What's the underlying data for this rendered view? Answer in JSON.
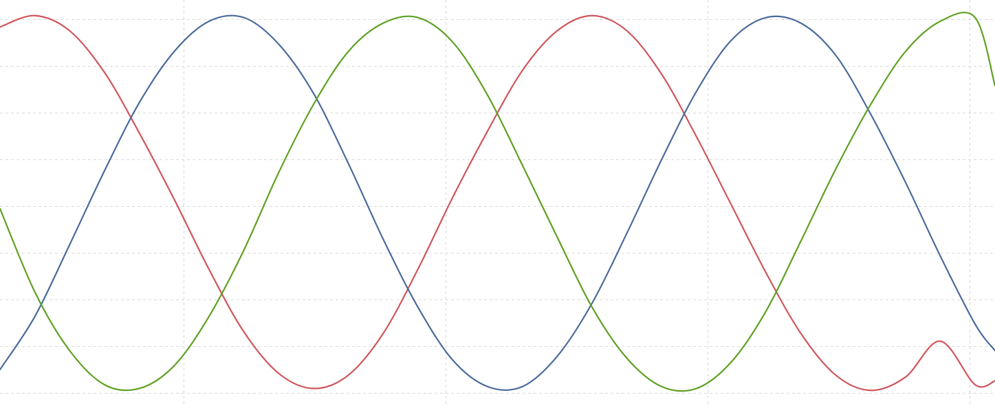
{
  "chart_data": {
    "type": "line",
    "title": "",
    "xlabel": "",
    "ylabel": "",
    "x_range": [
      0,
      1
    ],
    "y_range": [
      -1,
      1
    ],
    "grid": true,
    "legend": "none",
    "colors": {
      "background": "#ffffff",
      "grid": "#d9d9d9"
    },
    "series": [
      {
        "color": "#d0555b",
        "x": [
          0,
          0.035,
          0.07,
          0.105,
          0.14,
          0.175,
          0.21,
          0.245,
          0.28,
          0.315,
          0.35,
          0.385,
          0.42,
          0.455,
          0.49,
          0.525,
          0.56,
          0.595,
          0.63,
          0.665,
          0.7,
          0.735,
          0.77,
          0.805,
          0.84,
          0.875,
          0.91,
          0.945,
          0.98,
          1.0
        ],
        "y": [
          0.93,
          0.99,
          0.91,
          0.69,
          0.37,
          0.02,
          -0.35,
          -0.68,
          -0.9,
          -0.98,
          -0.91,
          -0.69,
          -0.35,
          0.03,
          0.38,
          0.7,
          0.91,
          0.99,
          0.91,
          0.68,
          0.35,
          -0.01,
          -0.37,
          -0.69,
          -0.91,
          -0.99,
          -0.92,
          -0.73,
          -0.96,
          -0.94
        ]
      },
      {
        "color": "#4a6a9b",
        "x": [
          0,
          0.035,
          0.07,
          0.105,
          0.14,
          0.175,
          0.21,
          0.245,
          0.28,
          0.315,
          0.35,
          0.385,
          0.42,
          0.455,
          0.49,
          0.525,
          0.56,
          0.595,
          0.63,
          0.665,
          0.7,
          0.735,
          0.77,
          0.805,
          0.84,
          0.875,
          0.91,
          0.945,
          0.98,
          1.0
        ],
        "y": [
          -0.88,
          -0.6,
          -0.22,
          0.17,
          0.53,
          0.8,
          0.96,
          0.98,
          0.84,
          0.58,
          0.21,
          -0.19,
          -0.55,
          -0.83,
          -0.97,
          -0.97,
          -0.81,
          -0.53,
          -0.16,
          0.23,
          0.59,
          0.86,
          0.98,
          0.95,
          0.78,
          0.47,
          0.11,
          -0.28,
          -0.64,
          -0.78
        ]
      },
      {
        "color": "#5ea022",
        "x": [
          0,
          0.035,
          0.07,
          0.105,
          0.14,
          0.175,
          0.21,
          0.245,
          0.28,
          0.315,
          0.35,
          0.385,
          0.42,
          0.455,
          0.49,
          0.525,
          0.56,
          0.595,
          0.63,
          0.665,
          0.7,
          0.735,
          0.77,
          0.805,
          0.84,
          0.875,
          0.91,
          0.945,
          0.98,
          1.0
        ],
        "y": [
          -0.03,
          -0.47,
          -0.78,
          -0.96,
          -0.98,
          -0.86,
          -0.6,
          -0.25,
          0.16,
          0.52,
          0.8,
          0.95,
          0.98,
          0.85,
          0.57,
          0.2,
          -0.18,
          -0.55,
          -0.82,
          -0.97,
          -0.98,
          -0.84,
          -0.57,
          -0.2,
          0.18,
          0.52,
          0.8,
          0.96,
          0.98,
          0.62
        ]
      }
    ]
  }
}
